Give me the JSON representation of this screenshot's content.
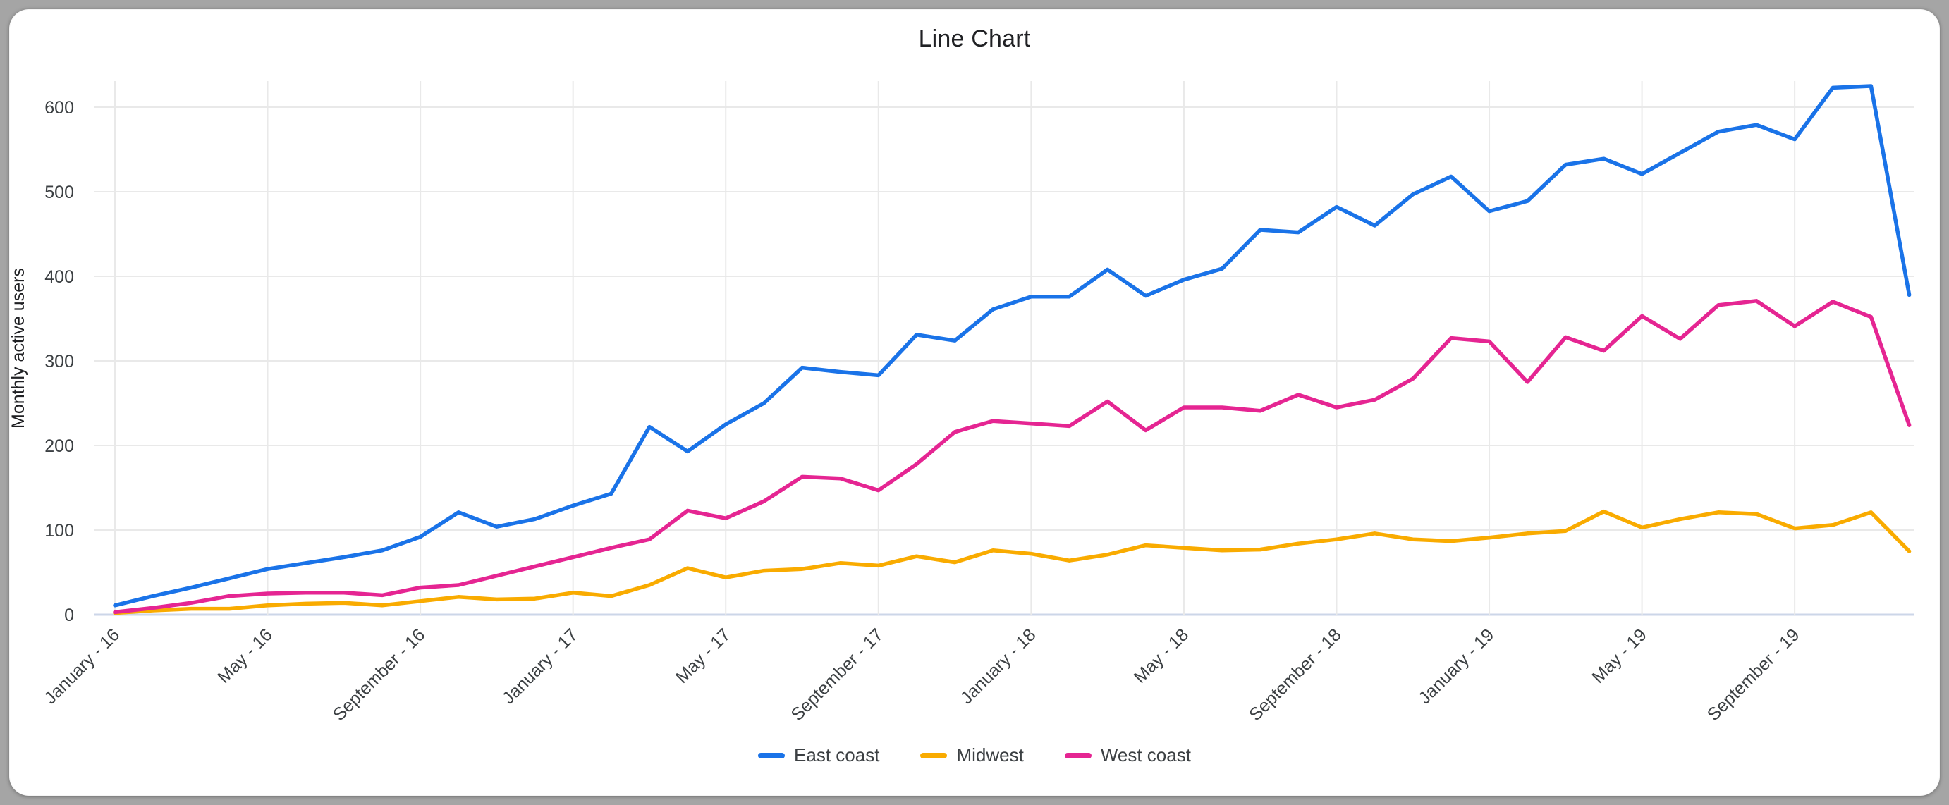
{
  "page": {
    "frame_background": "#a5a5a5",
    "card_background": "#ffffff"
  },
  "chart_data": {
    "type": "line",
    "title": "Line Chart",
    "xlabel": "",
    "ylabel": "Monthly active users",
    "ylim": [
      0,
      650
    ],
    "y_ticks": [
      0,
      100,
      200,
      300,
      400,
      500,
      600
    ],
    "x_tick_labels": [
      "January - 16",
      "May - 16",
      "September - 16",
      "January - 17",
      "May - 17",
      "September - 17",
      "January - 18",
      "May - 18",
      "September - 18",
      "January - 19",
      "May - 19",
      "September - 19"
    ],
    "x_tick_positions": [
      0,
      4,
      8,
      12,
      16,
      20,
      24,
      28,
      32,
      36,
      40,
      44
    ],
    "n_points": 48,
    "grid": true,
    "legend_position": "bottom",
    "series": [
      {
        "name": "East coast",
        "color": "#1a73e8",
        "values": [
          11,
          22,
          32,
          43,
          54,
          61,
          68,
          76,
          92,
          121,
          104,
          113,
          129,
          143,
          222,
          193,
          225,
          250,
          292,
          287,
          283,
          331,
          324,
          361,
          376,
          376,
          408,
          377,
          396,
          409,
          455,
          452,
          482,
          460,
          497,
          518,
          477,
          489,
          532,
          539,
          521,
          546,
          571,
          579,
          562,
          623,
          625,
          378
        ]
      },
      {
        "name": "Midwest",
        "color": "#f9ab00",
        "values": [
          2,
          5,
          7,
          7,
          11,
          13,
          14,
          11,
          16,
          21,
          18,
          19,
          26,
          22,
          35,
          55,
          44,
          52,
          54,
          61,
          58,
          69,
          62,
          76,
          72,
          64,
          71,
          82,
          79,
          76,
          77,
          84,
          89,
          96,
          89,
          87,
          91,
          96,
          99,
          122,
          103,
          113,
          121,
          119,
          102,
          106,
          121,
          75
        ]
      },
      {
        "name": "West coast",
        "color": "#e52592",
        "values": [
          3,
          8,
          14,
          22,
          25,
          26,
          26,
          23,
          32,
          35,
          46,
          57,
          68,
          79,
          89,
          123,
          114,
          134,
          163,
          161,
          147,
          178,
          216,
          229,
          226,
          223,
          252,
          218,
          245,
          245,
          241,
          260,
          245,
          254,
          279,
          327,
          323,
          275,
          328,
          312,
          353,
          326,
          366,
          371,
          341,
          370,
          352,
          224
        ]
      }
    ]
  }
}
